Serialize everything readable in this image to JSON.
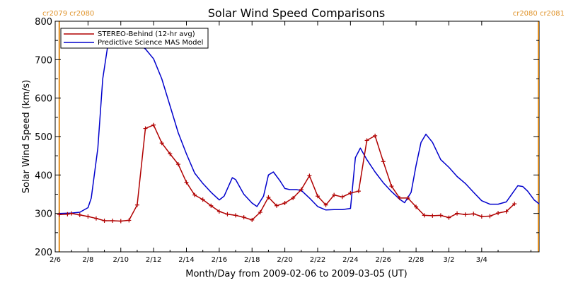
{
  "chart_data": {
    "type": "line",
    "title": "Solar Wind Speed Comparisons",
    "xlabel": "Month/Day from 2009-02-06 to 2009-03-05 (UT)",
    "ylabel": "Solar Wind Speed (km/s)",
    "xlim": [
      "2009-02-06",
      "2009-03-06"
    ],
    "ylim": [
      200,
      800
    ],
    "x_tick_labels": [
      "2/6",
      "2/8",
      "2/10",
      "2/12",
      "2/14",
      "2/16",
      "2/18",
      "2/20",
      "2/22",
      "2/24",
      "2/26",
      "2/28",
      "3/2",
      "3/4"
    ],
    "x_tick_days": [
      0,
      2,
      4,
      6,
      8,
      10,
      12,
      14,
      16,
      18,
      20,
      22,
      24,
      26
    ],
    "y_ticks": [
      200,
      300,
      400,
      500,
      600,
      700,
      800
    ],
    "grid": false,
    "legend_position": "top-left",
    "carrington_markers": [
      {
        "label": "cr2079 cr2080",
        "day": 0.25,
        "position": "left"
      },
      {
        "label": "cr2080 cr2081",
        "day": 28.0,
        "position": "right"
      }
    ],
    "series": [
      {
        "name": "STEREO-Behind (12-hr avg)",
        "color": "#b00000",
        "markers": true,
        "points": [
          [
            0.25,
            297
          ],
          [
            0.75,
            298
          ],
          [
            1.0,
            300
          ],
          [
            1.5,
            296
          ],
          [
            2.0,
            292
          ],
          [
            2.5,
            287
          ],
          [
            3.0,
            281
          ],
          [
            3.5,
            281
          ],
          [
            4.0,
            280
          ],
          [
            4.5,
            282
          ],
          [
            5.0,
            322
          ],
          [
            5.5,
            521
          ],
          [
            6.0,
            530
          ],
          [
            6.5,
            483
          ],
          [
            7.0,
            455
          ],
          [
            7.5,
            428
          ],
          [
            8.0,
            381
          ],
          [
            8.5,
            348
          ],
          [
            9.0,
            336
          ],
          [
            9.5,
            320
          ],
          [
            10.0,
            305
          ],
          [
            10.5,
            298
          ],
          [
            11.0,
            295
          ],
          [
            11.5,
            290
          ],
          [
            12.0,
            283
          ],
          [
            12.5,
            303
          ],
          [
            13.0,
            342
          ],
          [
            13.5,
            320
          ],
          [
            14.0,
            327
          ],
          [
            14.5,
            340
          ],
          [
            15.0,
            362
          ],
          [
            15.5,
            398
          ],
          [
            16.0,
            345
          ],
          [
            16.5,
            322
          ],
          [
            17.0,
            348
          ],
          [
            17.5,
            343
          ],
          [
            18.0,
            353
          ],
          [
            18.5,
            358
          ],
          [
            19.0,
            490
          ],
          [
            19.5,
            502
          ],
          [
            20.0,
            435
          ],
          [
            20.5,
            371
          ],
          [
            21.0,
            340
          ],
          [
            21.5,
            340
          ],
          [
            22.0,
            317
          ],
          [
            22.5,
            295
          ],
          [
            23.0,
            294
          ],
          [
            23.5,
            295
          ],
          [
            24.0,
            289
          ],
          [
            24.5,
            300
          ],
          [
            25.0,
            297
          ],
          [
            25.5,
            299
          ],
          [
            26.0,
            292
          ],
          [
            26.5,
            293
          ],
          [
            27.0,
            301
          ],
          [
            27.5,
            305
          ],
          [
            28.0,
            325
          ]
        ]
      },
      {
        "name": "Predictive Science MAS Model",
        "color": "#0000cc",
        "markers": false,
        "points": [
          [
            0.25,
            300
          ],
          [
            1.0,
            301
          ],
          [
            1.5,
            303
          ],
          [
            2.0,
            315
          ],
          [
            2.2,
            340
          ],
          [
            2.6,
            470
          ],
          [
            2.9,
            650
          ],
          [
            3.2,
            735
          ],
          [
            3.5,
            745
          ],
          [
            4.0,
            748
          ],
          [
            4.5,
            747
          ],
          [
            5.0,
            742
          ],
          [
            5.5,
            728
          ],
          [
            6.0,
            702
          ],
          [
            6.5,
            650
          ],
          [
            7.0,
            580
          ],
          [
            7.5,
            510
          ],
          [
            8.0,
            455
          ],
          [
            8.5,
            405
          ],
          [
            9.0,
            378
          ],
          [
            9.5,
            355
          ],
          [
            10.0,
            335
          ],
          [
            10.3,
            345
          ],
          [
            10.8,
            393
          ],
          [
            11.0,
            388
          ],
          [
            11.5,
            350
          ],
          [
            12.0,
            327
          ],
          [
            12.3,
            318
          ],
          [
            12.7,
            345
          ],
          [
            13.0,
            400
          ],
          [
            13.3,
            408
          ],
          [
            13.7,
            385
          ],
          [
            14.0,
            365
          ],
          [
            14.3,
            362
          ],
          [
            14.7,
            362
          ],
          [
            15.0,
            360
          ],
          [
            15.5,
            340
          ],
          [
            16.0,
            318
          ],
          [
            16.5,
            309
          ],
          [
            17.0,
            310
          ],
          [
            17.5,
            310
          ],
          [
            18.0,
            313
          ],
          [
            18.3,
            445
          ],
          [
            18.6,
            470
          ],
          [
            19.0,
            440
          ],
          [
            19.5,
            408
          ],
          [
            20.0,
            380
          ],
          [
            20.5,
            357
          ],
          [
            21.0,
            337
          ],
          [
            21.3,
            328
          ],
          [
            21.7,
            355
          ],
          [
            22.0,
            425
          ],
          [
            22.3,
            485
          ],
          [
            22.6,
            506
          ],
          [
            23.0,
            485
          ],
          [
            23.5,
            440
          ],
          [
            24.0,
            420
          ],
          [
            24.5,
            396
          ],
          [
            25.0,
            378
          ],
          [
            25.5,
            355
          ],
          [
            26.0,
            333
          ],
          [
            26.5,
            324
          ],
          [
            27.0,
            324
          ],
          [
            27.5,
            330
          ],
          [
            27.8,
            348
          ],
          [
            28.2,
            372
          ],
          [
            28.5,
            370
          ],
          [
            28.8,
            358
          ],
          [
            29.2,
            335
          ],
          [
            29.5,
            325
          ]
        ]
      }
    ]
  }
}
